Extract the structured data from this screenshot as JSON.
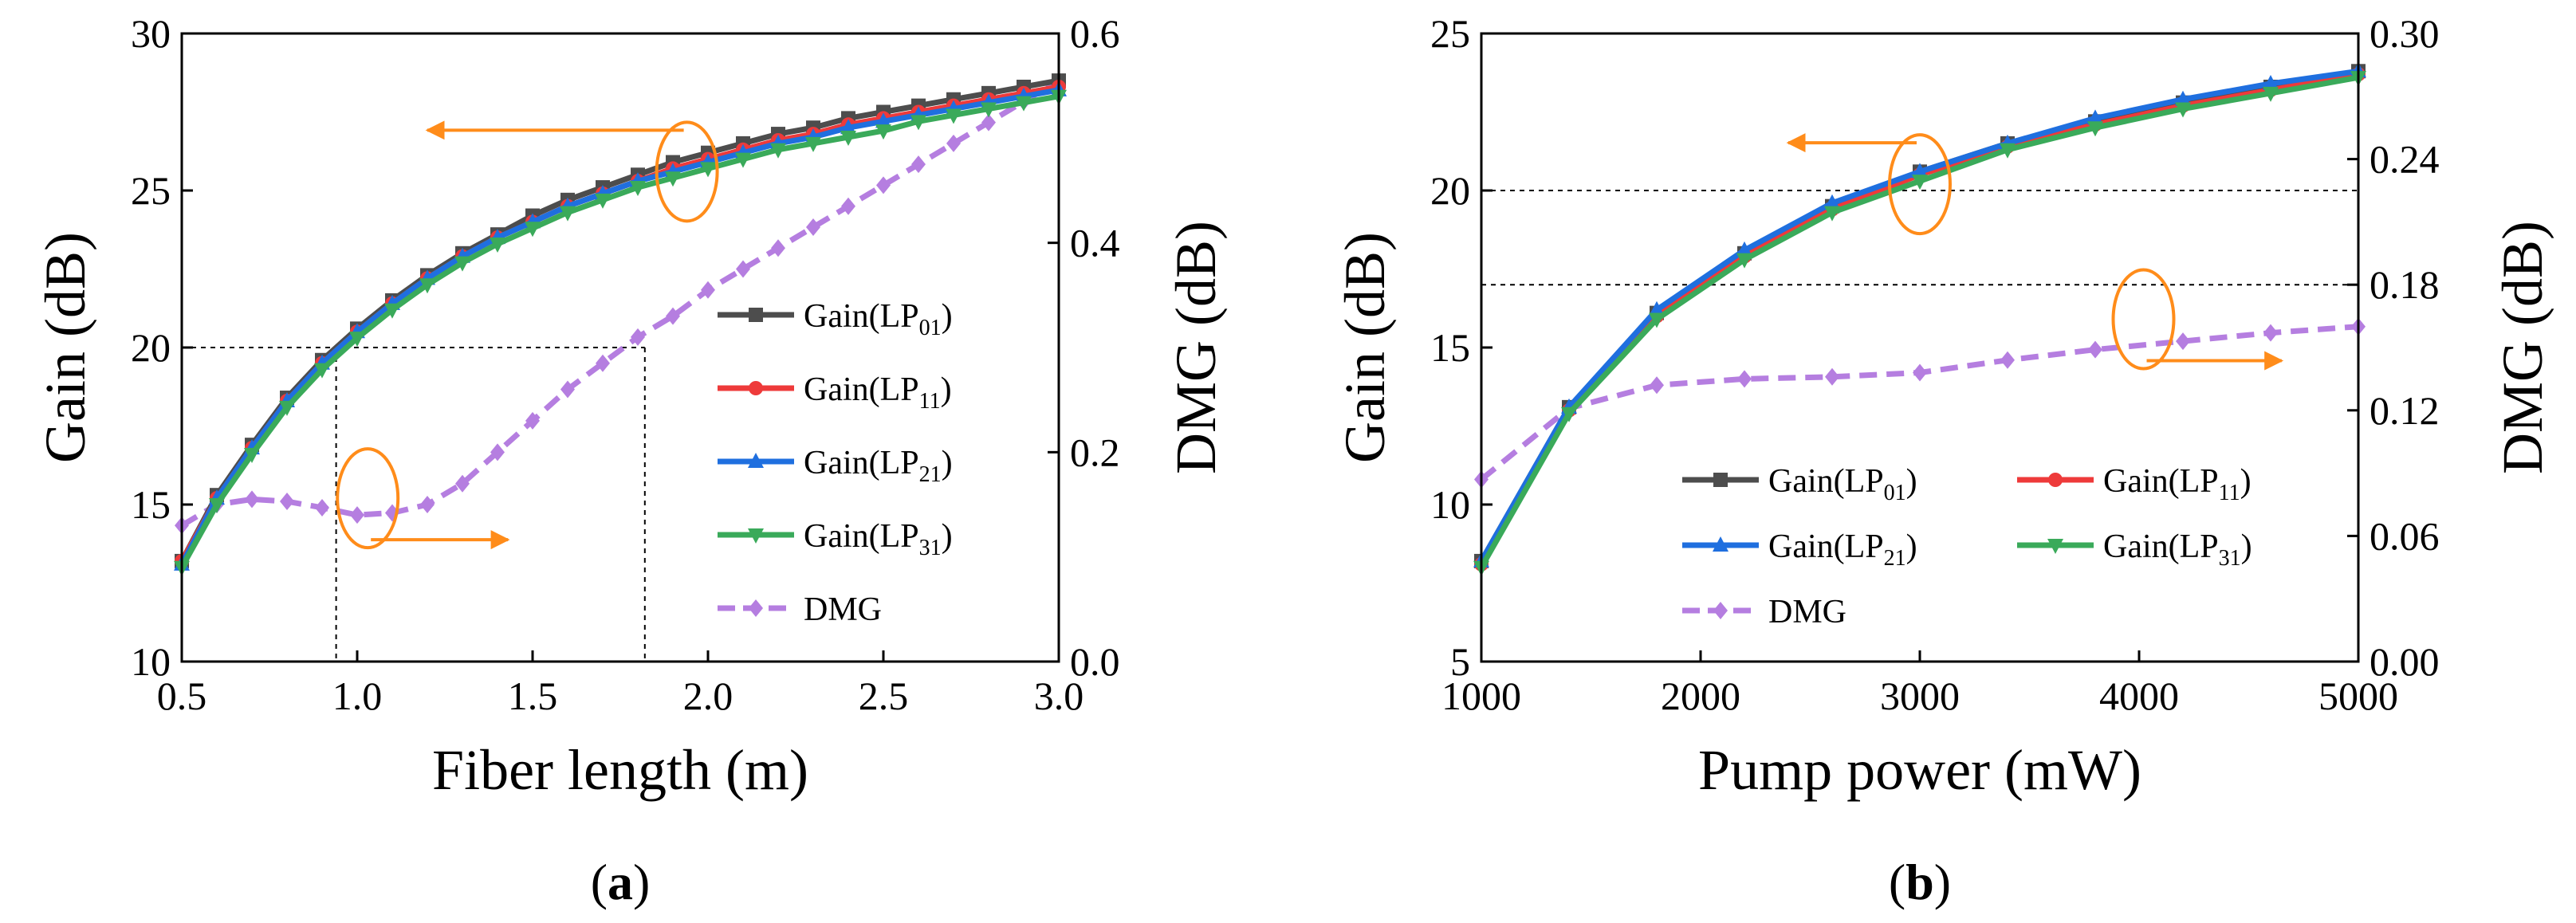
{
  "colors": {
    "lp01": "#4d4d4d",
    "lp11": "#ee3a3a",
    "lp21": "#1f6fdf",
    "lp31": "#3aaa5a",
    "dmg": "#b57ee0",
    "annotation": "#ff8c1a",
    "guide": "#000000"
  },
  "chart_data": [
    {
      "type": "line",
      "panel_label": {
        "open": "(",
        "letter": "a",
        "close": ")"
      },
      "xlabel": "Fiber length (m)",
      "ylabel_left": "Gain (dB)",
      "ylabel_right": "DMG (dB)",
      "xlim": [
        0.5,
        3.0
      ],
      "ylim_left": [
        10,
        30
      ],
      "ylim_right": [
        0.0,
        0.6
      ],
      "x_ticks": [
        "0.5",
        "1.0",
        "1.5",
        "2.0",
        "2.5",
        "3.0"
      ],
      "y_left_ticks": [
        "10",
        "15",
        "20",
        "25",
        "30"
      ],
      "y_right_ticks": [
        "0.0",
        "0.2",
        "0.4",
        "0.6"
      ],
      "legend_position": "right",
      "legend": [
        {
          "key": "lp01",
          "base": "Gain(LP",
          "sub": "01",
          "close": ")",
          "marker": "square"
        },
        {
          "key": "lp11",
          "base": "Gain(LP",
          "sub": "11",
          "close": ")",
          "marker": "circle"
        },
        {
          "key": "lp21",
          "base": "Gain(LP",
          "sub": "21",
          "close": ")",
          "marker": "triangle"
        },
        {
          "key": "lp31",
          "base": "Gain(LP",
          "sub": "31",
          "close": ")",
          "marker": "tri-down"
        },
        {
          "key": "dmg",
          "base": "DMG",
          "sub": "",
          "close": "",
          "marker": "diamond"
        }
      ],
      "x": [
        0.5,
        0.6,
        0.7,
        0.8,
        0.9,
        1.0,
        1.1,
        1.2,
        1.3,
        1.4,
        1.5,
        1.6,
        1.7,
        1.8,
        1.9,
        2.0,
        2.1,
        2.2,
        2.3,
        2.4,
        2.5,
        2.6,
        2.7,
        2.8,
        2.9,
        3.0
      ],
      "series": [
        {
          "key": "lp01",
          "name": "Gain(LP01)",
          "axis": "left",
          "values": [
            13.2,
            15.3,
            16.9,
            18.4,
            19.6,
            20.6,
            21.5,
            22.3,
            23.0,
            23.6,
            24.2,
            24.7,
            25.1,
            25.5,
            25.9,
            26.2,
            26.5,
            26.8,
            27.0,
            27.3,
            27.5,
            27.7,
            27.9,
            28.1,
            28.3,
            28.5
          ]
        },
        {
          "key": "lp11",
          "name": "Gain(LP11)",
          "axis": "left",
          "values": [
            13.2,
            15.2,
            16.8,
            18.3,
            19.5,
            20.5,
            21.4,
            22.2,
            22.9,
            23.5,
            24.0,
            24.5,
            24.9,
            25.3,
            25.7,
            26.0,
            26.3,
            26.6,
            26.8,
            27.1,
            27.3,
            27.5,
            27.7,
            27.9,
            28.1,
            28.3
          ]
        },
        {
          "key": "lp21",
          "name": "Gain(LP21)",
          "axis": "left",
          "values": [
            13.1,
            15.2,
            16.8,
            18.3,
            19.5,
            20.5,
            21.4,
            22.2,
            22.9,
            23.5,
            24.0,
            24.5,
            24.9,
            25.3,
            25.6,
            25.9,
            26.2,
            26.5,
            26.7,
            27.0,
            27.2,
            27.4,
            27.6,
            27.8,
            28.0,
            28.2
          ]
        },
        {
          "key": "lp31",
          "name": "Gain(LP31)",
          "axis": "left",
          "values": [
            13.0,
            15.0,
            16.6,
            18.1,
            19.3,
            20.3,
            21.2,
            22.0,
            22.7,
            23.3,
            23.8,
            24.3,
            24.7,
            25.1,
            25.4,
            25.7,
            26.0,
            26.3,
            26.5,
            26.7,
            26.9,
            27.2,
            27.4,
            27.6,
            27.8,
            28.0
          ]
        },
        {
          "key": "dmg",
          "name": "DMG",
          "axis": "right",
          "values": [
            0.13,
            0.15,
            0.155,
            0.153,
            0.147,
            0.14,
            0.142,
            0.15,
            0.17,
            0.2,
            0.23,
            0.26,
            0.285,
            0.31,
            0.33,
            0.355,
            0.375,
            0.395,
            0.415,
            0.435,
            0.455,
            0.475,
            0.495,
            0.515,
            0.535,
            0.555
          ]
        }
      ],
      "guides": {
        "gain_level": 20,
        "dmg_level": 0.3,
        "x_lines": [
          0.94,
          1.82
        ]
      },
      "annotations": [
        {
          "type": "ellipse-arrow",
          "cx": 1.94,
          "cy": 25.6,
          "dir": "left",
          "tip_x": 1.2
        },
        {
          "type": "ellipse-arrow",
          "cx": 1.03,
          "cy": 15.2,
          "dir": "right",
          "tip_x": 1.43
        }
      ]
    },
    {
      "type": "line",
      "panel_label": {
        "open": "(",
        "letter": "b",
        "close": ")"
      },
      "xlabel": "Pump power (mW)",
      "ylabel_left": "Gain (dB)",
      "ylabel_right": "DMG (dB)",
      "xlim": [
        1000,
        5000
      ],
      "ylim_left": [
        5,
        25
      ],
      "ylim_right": [
        0.0,
        0.3
      ],
      "x_ticks": [
        "1000",
        "2000",
        "3000",
        "4000",
        "5000"
      ],
      "y_left_ticks": [
        "5",
        "10",
        "15",
        "20",
        "25"
      ],
      "y_right_ticks": [
        "0.00",
        "0.06",
        "0.12",
        "0.18",
        "0.24",
        "0.30"
      ],
      "legend_position": "bottom-right",
      "legend": [
        {
          "key": "lp01",
          "base": "Gain(LP",
          "sub": "01",
          "close": ")",
          "marker": "square"
        },
        {
          "key": "lp11",
          "base": "Gain(LP",
          "sub": "11",
          "close": ")",
          "marker": "circle"
        },
        {
          "key": "lp21",
          "base": "Gain(LP",
          "sub": "21",
          "close": ")",
          "marker": "triangle"
        },
        {
          "key": "lp31",
          "base": "Gain(LP",
          "sub": "31",
          "close": ")",
          "marker": "tri-down"
        },
        {
          "key": "dmg",
          "base": "DMG",
          "sub": "",
          "close": "",
          "marker": "diamond"
        }
      ],
      "x": [
        1000,
        1400,
        1800,
        2200,
        2600,
        3000,
        3400,
        3800,
        4200,
        4600,
        5000
      ],
      "series": [
        {
          "key": "lp01",
          "name": "Gain(LP01)",
          "axis": "left",
          "values": [
            8.2,
            13.1,
            16.1,
            18.0,
            19.5,
            20.6,
            21.5,
            22.2,
            22.8,
            23.3,
            23.8
          ]
        },
        {
          "key": "lp11",
          "name": "Gain(LP11)",
          "axis": "left",
          "values": [
            8.1,
            13.0,
            16.0,
            17.9,
            19.4,
            20.5,
            21.4,
            22.1,
            22.7,
            23.2,
            23.7
          ]
        },
        {
          "key": "lp21",
          "name": "Gain(LP21)",
          "axis": "left",
          "values": [
            8.2,
            13.1,
            16.2,
            18.1,
            19.6,
            20.6,
            21.5,
            22.3,
            22.9,
            23.4,
            23.8
          ]
        },
        {
          "key": "lp31",
          "name": "Gain(LP31)",
          "axis": "left",
          "values": [
            8.0,
            12.9,
            15.9,
            17.8,
            19.3,
            20.3,
            21.3,
            22.0,
            22.6,
            23.1,
            23.6
          ]
        },
        {
          "key": "dmg",
          "name": "DMG",
          "axis": "right",
          "values": [
            0.087,
            0.121,
            0.132,
            0.135,
            0.136,
            0.138,
            0.144,
            0.149,
            0.153,
            0.157,
            0.16
          ]
        }
      ],
      "guides": {
        "gain_levels": [
          20,
          17
        ]
      },
      "annotations": [
        {
          "type": "ellipse-arrow",
          "cx": 3000,
          "cy": 20.2,
          "dir": "left",
          "tip_x": 2400
        },
        {
          "type": "ellipse-arrow",
          "cx": 4020,
          "cy": 15.9,
          "dir": "right",
          "tip_x": 4650
        }
      ]
    }
  ]
}
